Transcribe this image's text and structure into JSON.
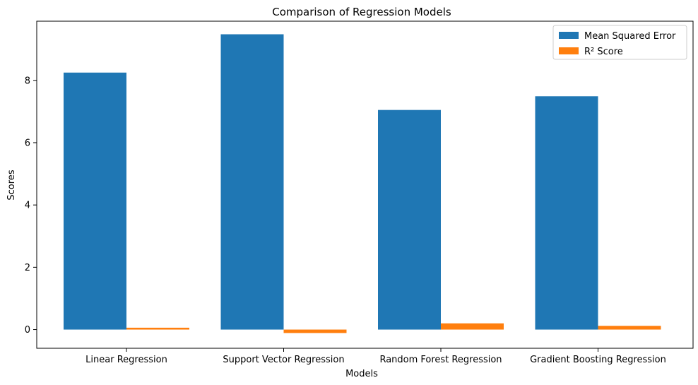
{
  "chart_data": {
    "type": "bar",
    "title": "Comparison of Regression Models",
    "xlabel": "Models",
    "ylabel": "Scores",
    "categories": [
      "Linear Regression",
      "Support Vector Regression",
      "Random Forest Regression",
      "Gradient Boosting Regression"
    ],
    "series": [
      {
        "name": "Mean Squared Error",
        "color": "#1f77b4",
        "values": [
          8.25,
          9.48,
          7.05,
          7.49
        ]
      },
      {
        "name": "R² Score",
        "color": "#ff7f0e",
        "values": [
          0.06,
          -0.11,
          0.2,
          0.12
        ]
      }
    ],
    "ylim": [
      -0.6,
      9.9
    ],
    "yticks": [
      0,
      2,
      4,
      6,
      8
    ],
    "grid": false,
    "legend_position": "top-right"
  }
}
